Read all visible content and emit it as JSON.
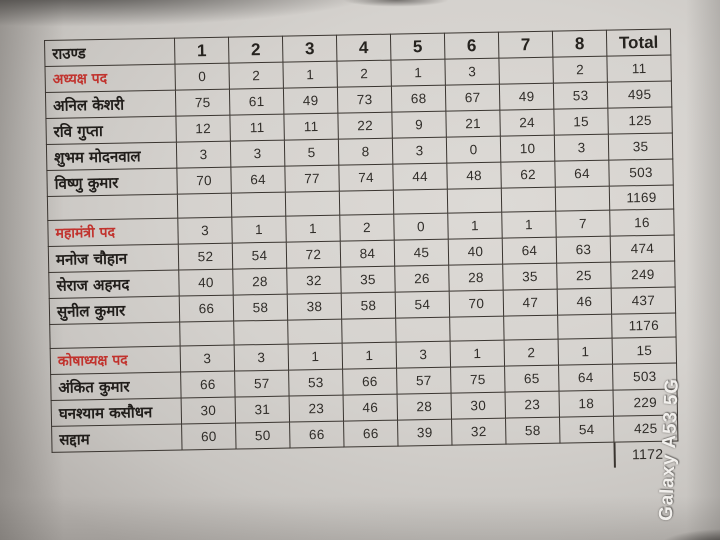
{
  "photo": {
    "watermark": "Galaxy A53 5G",
    "colors": {
      "paper": "#d5d2ce",
      "ink": "#302d29",
      "border": "#3a3530",
      "accent_red": "#c1332e",
      "watermark_text": "#f1efec"
    }
  },
  "table": {
    "header": {
      "round_label": "राउण्ड",
      "rounds": [
        "1",
        "2",
        "3",
        "4",
        "5",
        "6",
        "7",
        "8"
      ],
      "total_label": "Total"
    },
    "rows": [
      {
        "kind": "post",
        "label": "अध्यक्ष पद",
        "values": [
          "0",
          "2",
          "1",
          "2",
          "1",
          "3",
          "",
          "2"
        ],
        "total": "11"
      },
      {
        "kind": "candidate",
        "label": "अनिल केशरी",
        "values": [
          "75",
          "61",
          "49",
          "73",
          "68",
          "67",
          "49",
          "53"
        ],
        "total": "495"
      },
      {
        "kind": "candidate",
        "label": "रवि गुप्ता",
        "values": [
          "12",
          "11",
          "11",
          "22",
          "9",
          "21",
          "24",
          "15"
        ],
        "total": "125"
      },
      {
        "kind": "candidate",
        "label": "शुभम मोदनवाल",
        "values": [
          "3",
          "3",
          "5",
          "8",
          "3",
          "0",
          "10",
          "3"
        ],
        "total": "35"
      },
      {
        "kind": "candidate",
        "label": "विष्णु कुमार",
        "values": [
          "70",
          "64",
          "77",
          "74",
          "44",
          "48",
          "62",
          "64"
        ],
        "total": "503"
      },
      {
        "kind": "subtotal",
        "label": "",
        "values": [
          "",
          "",
          "",
          "",
          "",
          "",
          "",
          ""
        ],
        "total": "1169"
      },
      {
        "kind": "post",
        "label": "महामंत्री पद",
        "values": [
          "3",
          "1",
          "1",
          "2",
          "0",
          "1",
          "1",
          "7"
        ],
        "total": "16"
      },
      {
        "kind": "candidate",
        "label": "मनोज चौहान",
        "values": [
          "52",
          "54",
          "72",
          "84",
          "45",
          "40",
          "64",
          "63"
        ],
        "total": "474"
      },
      {
        "kind": "candidate",
        "label": "सेराज अहमद",
        "values": [
          "40",
          "28",
          "32",
          "35",
          "26",
          "28",
          "35",
          "25"
        ],
        "total": "249"
      },
      {
        "kind": "candidate",
        "label": "सुनील कुमार",
        "values": [
          "66",
          "58",
          "38",
          "58",
          "54",
          "70",
          "47",
          "46"
        ],
        "total": "437"
      },
      {
        "kind": "subtotal",
        "label": "",
        "values": [
          "",
          "",
          "",
          "",
          "",
          "",
          "",
          ""
        ],
        "total": "1176"
      },
      {
        "kind": "post",
        "label": "कोषाध्यक्ष पद",
        "values": [
          "3",
          "3",
          "1",
          "1",
          "3",
          "1",
          "2",
          "1"
        ],
        "total": "15"
      },
      {
        "kind": "candidate",
        "label": "अंकित कुमार",
        "values": [
          "66",
          "57",
          "53",
          "66",
          "57",
          "75",
          "65",
          "64"
        ],
        "total": "503"
      },
      {
        "kind": "candidate",
        "label": "घनश्याम कसौधन",
        "values": [
          "30",
          "31",
          "23",
          "46",
          "28",
          "30",
          "23",
          "18"
        ],
        "total": "229"
      },
      {
        "kind": "candidate",
        "label": "सद्दाम",
        "values": [
          "60",
          "50",
          "66",
          "66",
          "39",
          "32",
          "58",
          "54"
        ],
        "total": "425"
      }
    ],
    "grand_total": "1172"
  }
}
